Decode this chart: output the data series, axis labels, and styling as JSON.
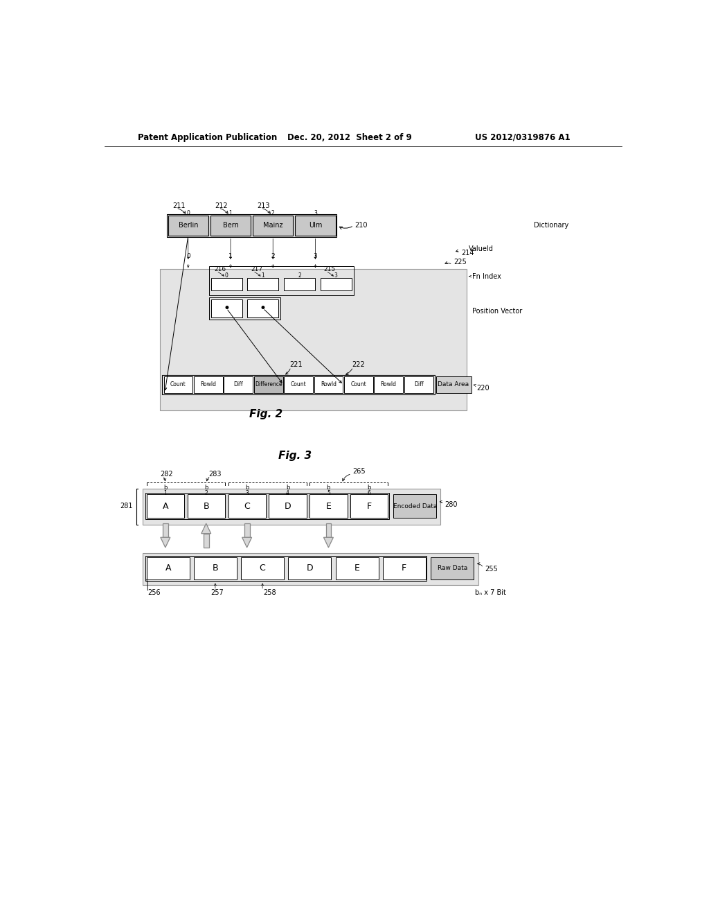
{
  "bg_color": "#ffffff",
  "header_left": "Patent Application Publication",
  "header_mid": "Dec. 20, 2012  Sheet 2 of 9",
  "header_right": "US 2012/0319876 A1",
  "fig2_title": "Fig. 2",
  "fig3_title": "Fig. 3",
  "dict_cells": [
    "Berlin",
    "Bern",
    "Mainz",
    "Ulm"
  ],
  "dict_cell_labels": [
    "211",
    "212",
    "213"
  ],
  "dict_indices": [
    "0",
    "1",
    "2",
    "3"
  ],
  "dictionary_label": "Dictionary",
  "valueid_label": "ValueId",
  "valueid_num": "214",
  "fn_index_label": "Fn Index",
  "fn_index_num": "225",
  "pos_vector_label": "Position Vector",
  "fn_index_cell_labels": [
    "216",
    "217",
    "",
    "215"
  ],
  "fn_index_cell_nums": [
    "0",
    "1",
    "2",
    "3"
  ],
  "data_area_label": "Data Area",
  "data_area_num": "220",
  "data_area_cells": [
    "Count",
    "RowId",
    "Diff",
    "Difference",
    "Count",
    "RowId",
    "Count",
    "RowId",
    "Diff"
  ],
  "seg221": "221",
  "seg222": "222",
  "encoded_label": "Encoded Data",
  "encoded_num": "280",
  "encoded_cells": [
    "A",
    "B",
    "C",
    "D",
    "E",
    "F"
  ],
  "raw_label": "Raw Data",
  "raw_num": "255",
  "raw_cells": [
    "A",
    "B",
    "C",
    "D",
    "E",
    "F"
  ],
  "seg281": "281",
  "seg282": "282",
  "seg283": "283",
  "seg265": "265",
  "seg256": "256",
  "seg257": "257",
  "seg258": "258",
  "bits_label": "bₙ x 7 Bit"
}
